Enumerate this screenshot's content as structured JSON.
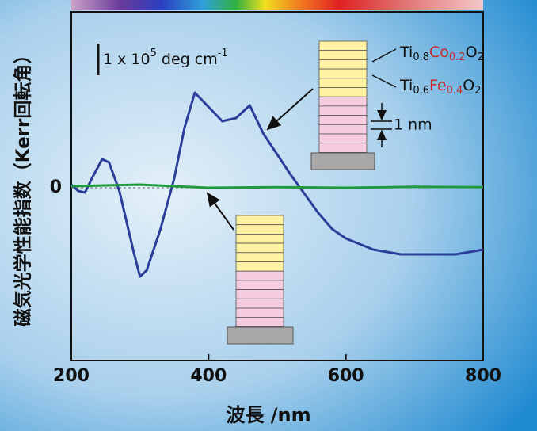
{
  "chart_data": {
    "type": "line",
    "x_label": "波長 /nm",
    "y_label": "磁気光学性能指数（Kerr回転角）",
    "xlim": [
      200,
      800
    ],
    "xticks": [
      200,
      400,
      600,
      800
    ],
    "ylim": [
      -5.45,
      5.55
    ],
    "yticks": [
      0
    ],
    "scale_bar": {
      "value": 1,
      "label_parts": [
        "1 x 10",
        "5",
        " deg cm",
        "-1"
      ]
    },
    "layer_labels": [
      {
        "parts": [
          "Ti",
          "0.8",
          "Co",
          "0.2",
          "O",
          "2"
        ]
      },
      {
        "parts": [
          "Ti",
          "0.6",
          "Fe",
          "0.4",
          "O",
          "2"
        ]
      }
    ],
    "thickness_label": "1 nm",
    "series": [
      {
        "color": "#2b3f9a",
        "x": [
          200,
          210,
          220,
          230,
          245,
          255,
          270,
          290,
          300,
          310,
          330,
          350,
          365,
          380,
          400,
          420,
          440,
          460,
          480,
          500,
          520,
          540,
          560,
          580,
          600,
          640,
          680,
          720,
          760,
          800
        ],
        "values": [
          0.1,
          -0.1,
          -0.15,
          0.3,
          0.9,
          0.8,
          -0.1,
          -1.95,
          -2.8,
          -2.6,
          -1.3,
          0.3,
          1.9,
          3.0,
          2.55,
          2.1,
          2.2,
          2.6,
          1.7,
          1.05,
          0.4,
          -0.2,
          -0.8,
          -1.3,
          -1.6,
          -1.95,
          -2.1,
          -2.1,
          -2.1,
          -1.95
        ]
      },
      {
        "color": "#1f9a3c",
        "x": [
          200,
          300,
          400,
          500,
          600,
          700,
          800
        ],
        "values": [
          0.05,
          0.1,
          0.0,
          0.02,
          0.0,
          0.03,
          0.02
        ]
      }
    ]
  }
}
